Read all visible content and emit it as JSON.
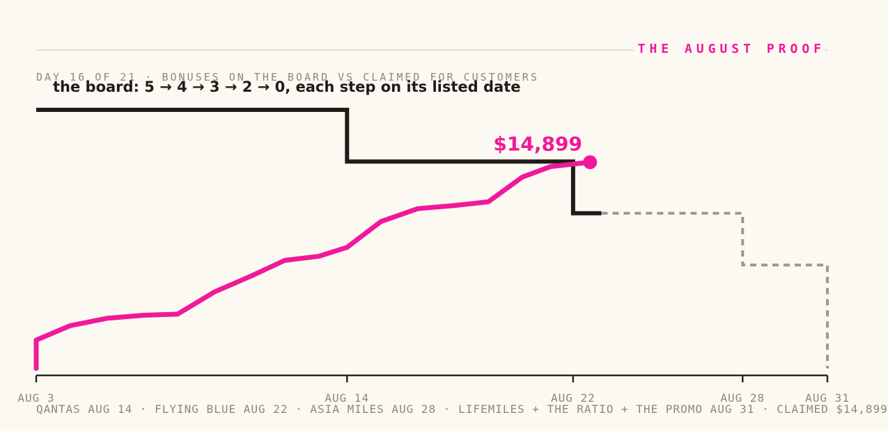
{
  "kicker": "THE AUGUST PROOF",
  "subtitle": "DAY 16 OF 21 · BONUSES ON THE BOARD VS CLAIMED FOR CUSTOMERS",
  "footer": "QANTAS AUG 14 · FLYING BLUE AUG 22 · ASIA MILES AUG 28 · LIFEMILES + THE RATIO + THE PROMO AUG 31 · CLAIMED $14,899",
  "colors": {
    "claimed": "#f0199a",
    "board": "#1f1c17",
    "projected": "#9a9893",
    "axis": "#2a2722",
    "background": "#fcf8f2"
  },
  "chart_data": {
    "type": "line",
    "x_range": [
      "2024-08-03",
      "2024-08-31"
    ],
    "tick_labels": [
      "AUG 3",
      "AUG 14",
      "AUG 22",
      "AUG 28",
      "AUG 31"
    ],
    "tick_days": [
      3,
      14,
      22,
      28,
      31
    ],
    "annotation": "the board: 5 → 4 → 3 → 2 → 0, each step on its listed date",
    "end_label": "$14,899",
    "series": [
      {
        "kind": "board",
        "x": [
          3,
          14,
          22,
          28,
          31
        ],
        "values": [
          5,
          4,
          3,
          2,
          0
        ],
        "drawn_through_day": 23
      },
      {
        "kind": "claimed",
        "x": [
          3,
          3,
          4.2,
          5.5,
          6.8,
          8,
          9.3,
          10.6,
          11.8,
          13,
          14,
          15.2,
          16.5,
          17.8,
          19,
          20.2,
          21.2,
          22.6
        ],
        "values": [
          0,
          2050,
          3090,
          3620,
          3840,
          3920,
          5520,
          6670,
          7810,
          8100,
          8750,
          10610,
          11540,
          11770,
          12040,
          13820,
          14580,
          14899
        ]
      }
    ],
    "ylim_board": [
      0,
      5
    ],
    "ylim_claimed": [
      0,
      22500
    ]
  }
}
